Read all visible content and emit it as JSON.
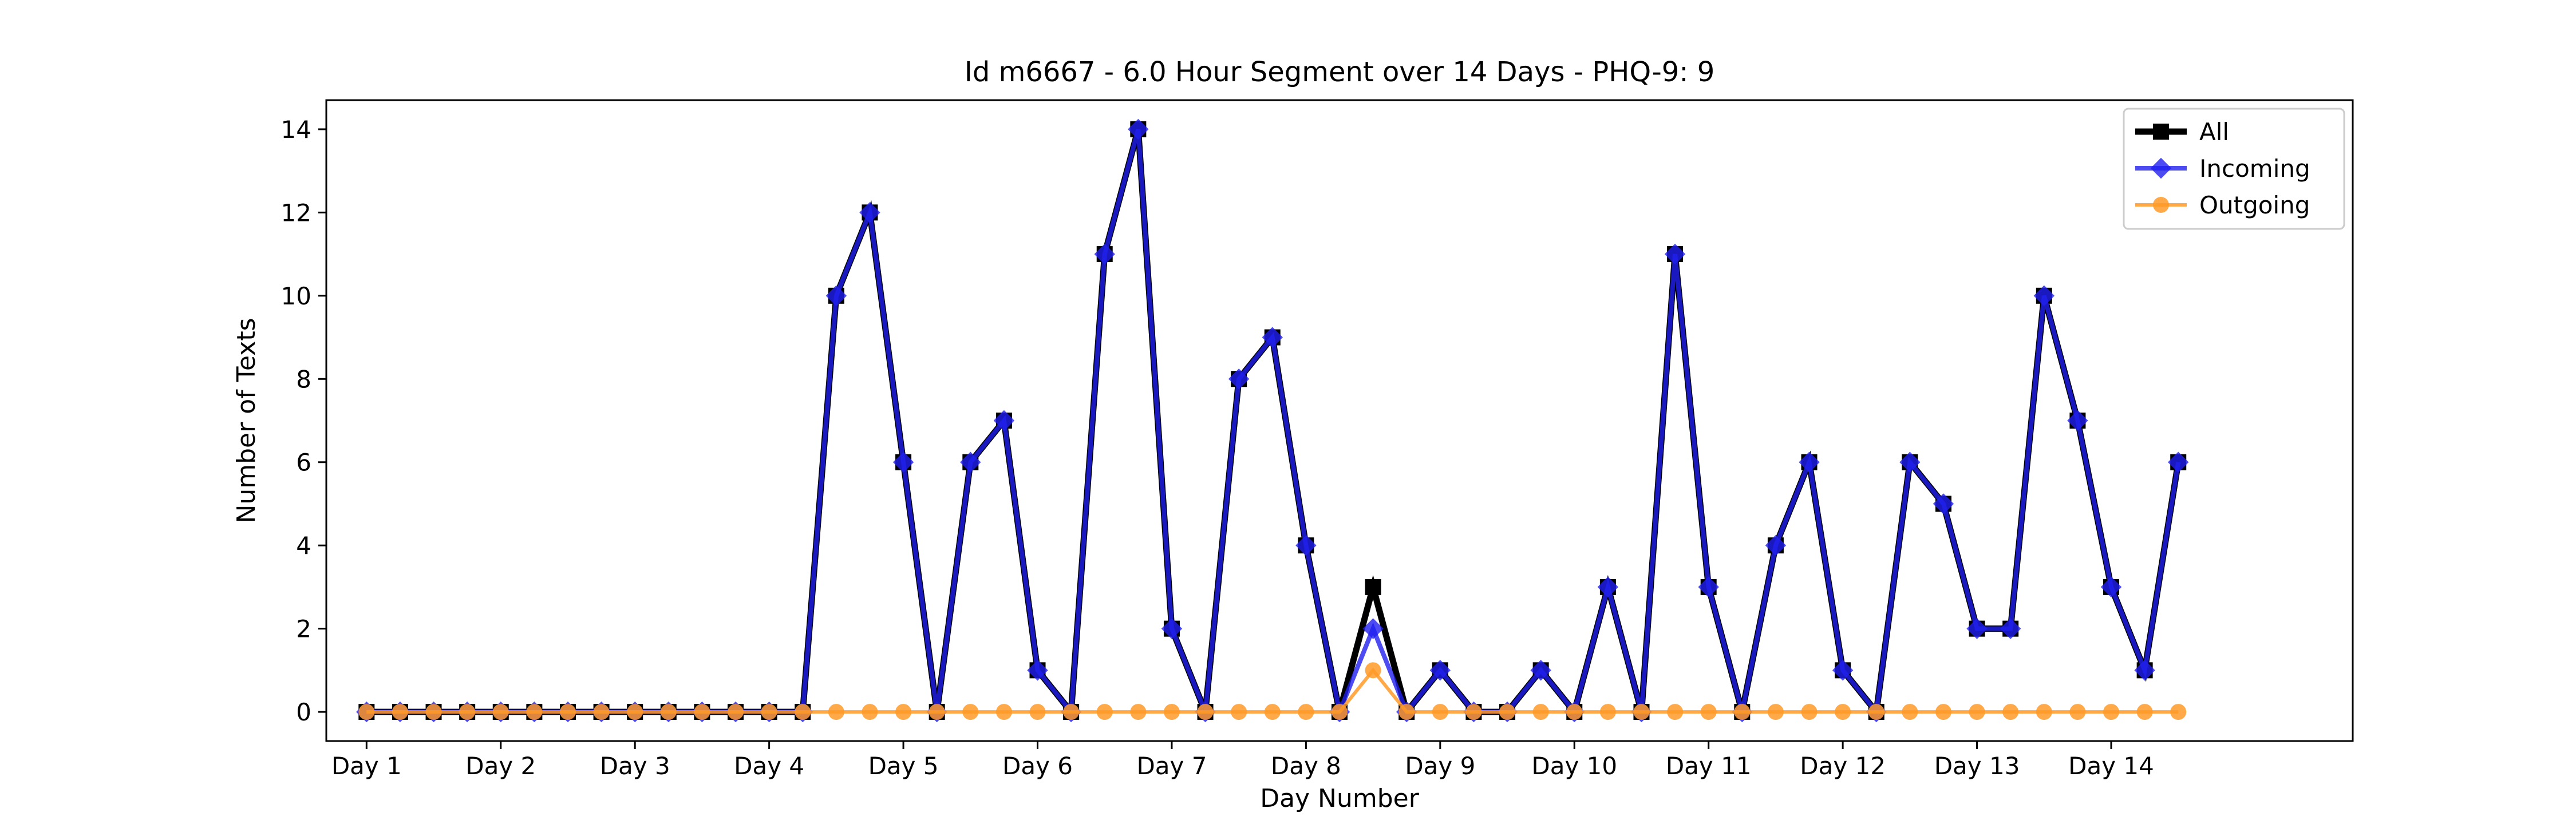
{
  "chart_data": {
    "type": "line",
    "title": "Id m6667 - 6.0 Hour Segment over 14 Days - PHQ-9: 9",
    "xlabel": "Day Number",
    "ylabel": "Number of Texts",
    "xlim": [
      -1.2,
      59.2
    ],
    "ylim": [
      -0.7,
      14.7
    ],
    "xticks": {
      "positions": [
        0,
        4,
        8,
        12,
        16,
        20,
        24,
        28,
        32,
        36,
        40,
        44,
        48,
        52
      ],
      "labels": [
        "Day 1",
        "Day 2",
        "Day 3",
        "Day 4",
        "Day 5",
        "Day 6",
        "Day 7",
        "Day 8",
        "Day 9",
        "Day 10",
        "Day 11",
        "Day 12",
        "Day 13",
        "Day 14"
      ]
    },
    "yticks": [
      0,
      2,
      4,
      6,
      8,
      10,
      12,
      14
    ],
    "grid": false,
    "legend_position": "top-right",
    "series": [
      {
        "name": "All",
        "color": "#000000",
        "marker": "square",
        "values": [
          0,
          0,
          0,
          0,
          0,
          0,
          0,
          0,
          0,
          0,
          0,
          0,
          0,
          0,
          10,
          12,
          6,
          0,
          6,
          7,
          1,
          0,
          11,
          14,
          2,
          0,
          8,
          9,
          4,
          0,
          3,
          0,
          1,
          0,
          0,
          1,
          0,
          3,
          0,
          11,
          3,
          0,
          4,
          6,
          1,
          0,
          6,
          5,
          2,
          2,
          10,
          7,
          3,
          1,
          6
        ]
      },
      {
        "name": "Incoming",
        "color": "#1f1fef",
        "marker": "diamond",
        "values": [
          0,
          0,
          0,
          0,
          0,
          0,
          0,
          0,
          0,
          0,
          0,
          0,
          0,
          0,
          10,
          12,
          6,
          0,
          6,
          7,
          1,
          0,
          11,
          14,
          2,
          0,
          8,
          9,
          4,
          0,
          2,
          0,
          1,
          0,
          0,
          1,
          0,
          3,
          0,
          11,
          3,
          0,
          4,
          6,
          1,
          0,
          6,
          5,
          2,
          2,
          10,
          7,
          3,
          1,
          6
        ]
      },
      {
        "name": "Outgoing",
        "color": "#ff9a28",
        "marker": "circle",
        "values": [
          0,
          0,
          0,
          0,
          0,
          0,
          0,
          0,
          0,
          0,
          0,
          0,
          0,
          0,
          0,
          0,
          0,
          0,
          0,
          0,
          0,
          0,
          0,
          0,
          0,
          0,
          0,
          0,
          0,
          0,
          1,
          0,
          0,
          0,
          0,
          0,
          0,
          0,
          0,
          0,
          0,
          0,
          0,
          0,
          0,
          0,
          0,
          0,
          0,
          0,
          0,
          0,
          0,
          0,
          0
        ]
      }
    ]
  }
}
